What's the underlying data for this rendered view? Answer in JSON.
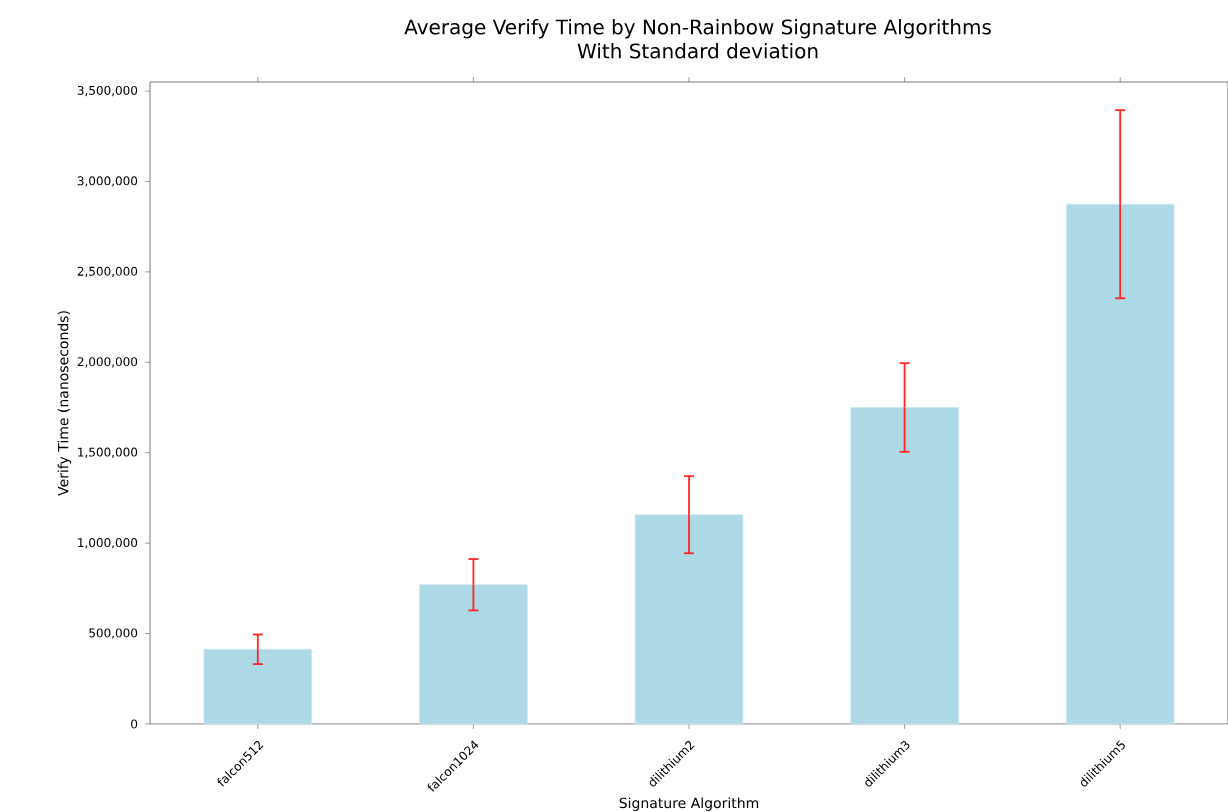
{
  "chart_data": {
    "type": "bar",
    "title": "Average Verify Time by Non-Rainbow Signature Algorithms",
    "subtitle": "With Standard deviation",
    "xlabel": "Signature Algorithm",
    "ylabel": "Verify Time (nanoseconds)",
    "categories": [
      "falcon512",
      "falcon1024",
      "dilithium2",
      "dilithium3",
      "dilithium5"
    ],
    "values": [
      413000,
      770000,
      1157000,
      1750000,
      2874000
    ],
    "errors": [
      82000,
      142000,
      213000,
      245000,
      520000
    ],
    "color": "#add8e6",
    "ylim": [
      0,
      3550000
    ],
    "yticks": [
      {
        "value": 0,
        "label": "0"
      },
      {
        "value": 500000,
        "label": "500,000"
      },
      {
        "value": 1000000,
        "label": "1,000,000"
      },
      {
        "value": 1500000,
        "label": "1,500,000"
      },
      {
        "value": 2000000,
        "label": "2,000,000"
      },
      {
        "value": 2500000,
        "label": "2,500,000"
      },
      {
        "value": 3000000,
        "label": "3,000,000"
      },
      {
        "value": 3500000,
        "label": "3,500,000"
      }
    ]
  }
}
